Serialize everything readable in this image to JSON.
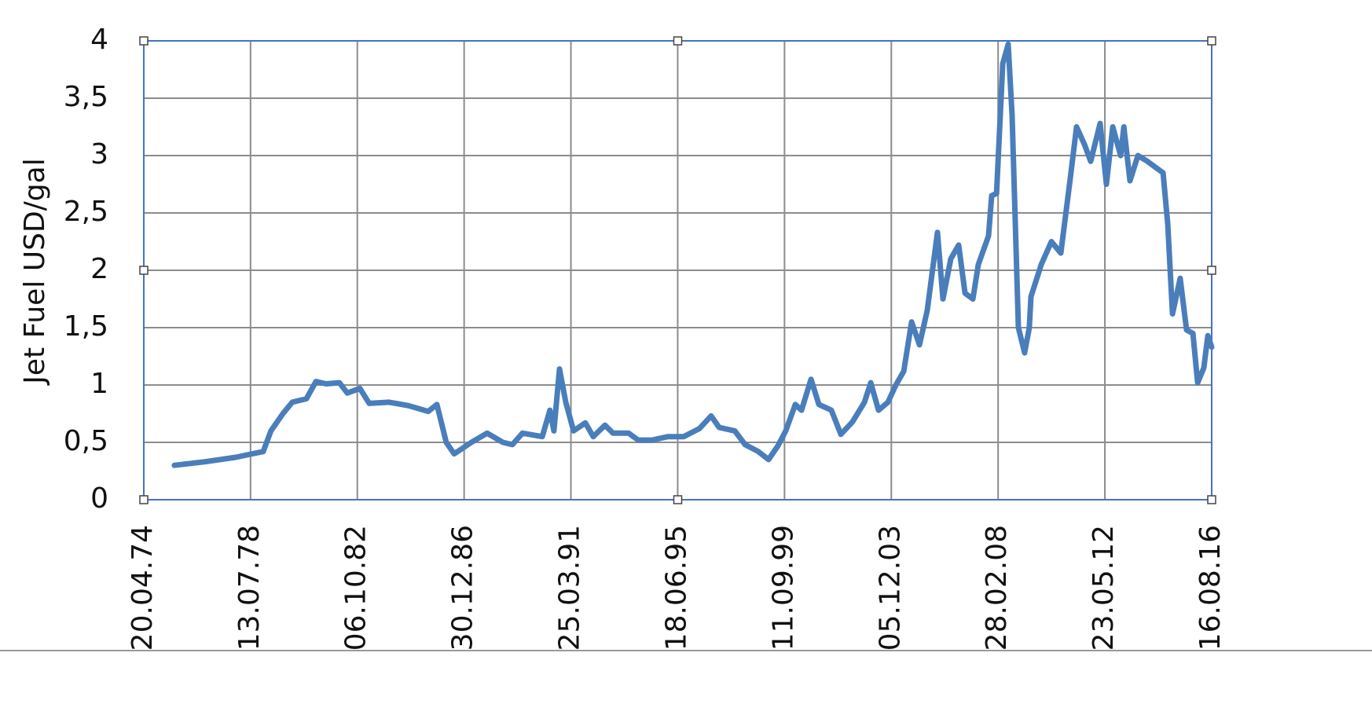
{
  "chart_data": {
    "type": "line",
    "y_label": "Jet Fuel USD/gal",
    "xlim": [
      "20.04.74",
      "16.08.16"
    ],
    "xticks": [
      "20.04.74",
      "13.07.78",
      "06.10.82",
      "30.12.86",
      "25.03.91",
      "18.06.95",
      "11.09.99",
      "05.12.03",
      "28.02.08",
      "23.05.12",
      "16.08.16"
    ],
    "ylim": [
      0,
      4
    ],
    "yticks": [
      0,
      {
        "value": 0.5,
        "label": "0,5"
      },
      1,
      {
        "value": 1.5,
        "label": "1,5"
      },
      2,
      {
        "value": 2.5,
        "label": "2,5"
      },
      3,
      {
        "value": 3.5,
        "label": "3,5"
      },
      4
    ],
    "grid": true,
    "x": [
      "06.07.75",
      "12.09.76",
      "11.12.77",
      "13.01.79",
      "05.05.79",
      "24.10.79",
      "08.03.80",
      "29.09.80",
      "14.02.81",
      "10.07.81",
      "20.01.82",
      "13.05.82",
      "12.11.82",
      "27.03.83",
      "07.01.84",
      "17.10.84",
      "28.07.85",
      "01.12.85",
      "15.04.86",
      "08.08.86",
      "14.04.87",
      "28.11.87",
      "13.07.88",
      "27.11.88",
      "23.04.89",
      "03.02.90",
      "25.05.90",
      "22.07.90",
      "10.10.90",
      "10.01.91",
      "02.05.91",
      "20.10.91",
      "12.02.92",
      "30.07.92",
      "23.11.92",
      "07.07.93",
      "22.11.93",
      "13.06.94",
      "28.01.95",
      "12.09.95",
      "26.04.96",
      "14.10.96",
      "07.02.97",
      "21.09.97",
      "17.02.98",
      "27.08.98",
      "23.01.99",
      "08.06.99",
      "29.09.99",
      "14.02.00",
      "14.05.00",
      "29.09.00",
      "20.01.01",
      "20.07.01",
      "05.12.01",
      "23.05.02",
      "11.11.02",
      "10.02.03",
      "03.06.03",
      "17.10.03",
      "09.02.04",
      "02.06.04",
      "24.09.04",
      "16.01.05",
      "08.05.05",
      "03.10.05",
      "22.12.05",
      "14.04.06",
      "06.08.06",
      "06.11.06",
      "28.02.07",
      "17.05.07",
      "12.10.07",
      "27.11.07",
      "05.02.08",
      "05.05.08",
      "23.07.08",
      "18.09.08",
      "18.12.08",
      "18.03.09",
      "25.05.09",
      "18.06.09",
      "14.11.09",
      "10.04.10",
      "24.08.10",
      "08.01.11",
      "08.04.11",
      "30.07.11",
      "30.10.11",
      "15.03.12",
      "14.06.12",
      "14.09.12",
      "06.01.13",
      "21.02.13",
      "21.05.13",
      "13.09.13",
      "27.01.14",
      "20.05.14",
      "12.09.14",
      "19.11.14",
      "26.01.15",
      "18.05.15",
      "18.08.15",
      "18.11.15",
      "25.01.16",
      "24.04.16",
      "21.06.16",
      "16.08.16"
    ],
    "series": [
      {
        "name": "Jet Fuel",
        "color": "#4a7ebb",
        "values": [
          0.3,
          0.33,
          0.37,
          0.42,
          0.6,
          0.75,
          0.85,
          0.88,
          1.03,
          1.01,
          1.02,
          0.93,
          0.97,
          0.84,
          0.85,
          0.82,
          0.77,
          0.83,
          0.5,
          0.4,
          0.5,
          0.58,
          0.5,
          0.48,
          0.58,
          0.55,
          0.78,
          0.6,
          1.14,
          0.85,
          0.6,
          0.67,
          0.55,
          0.65,
          0.58,
          0.58,
          0.52,
          0.52,
          0.55,
          0.55,
          0.62,
          0.73,
          0.63,
          0.6,
          0.48,
          0.42,
          0.35,
          0.47,
          0.6,
          0.83,
          0.78,
          1.05,
          0.83,
          0.78,
          0.57,
          0.68,
          0.85,
          1.02,
          0.78,
          0.85,
          1.0,
          1.12,
          1.55,
          1.35,
          1.65,
          2.33,
          1.75,
          2.1,
          2.22,
          1.8,
          1.75,
          2.05,
          2.3,
          2.65,
          2.67,
          3.8,
          3.97,
          3.35,
          1.5,
          1.28,
          1.5,
          1.77,
          2.05,
          2.25,
          2.15,
          2.8,
          3.25,
          3.1,
          2.95,
          3.28,
          2.75,
          3.25,
          3.0,
          3.25,
          2.78,
          3.0,
          2.95,
          2.9,
          2.85,
          2.4,
          1.62,
          1.93,
          1.48,
          1.45,
          1.02,
          1.15,
          1.43,
          1.33
        ]
      }
    ]
  }
}
